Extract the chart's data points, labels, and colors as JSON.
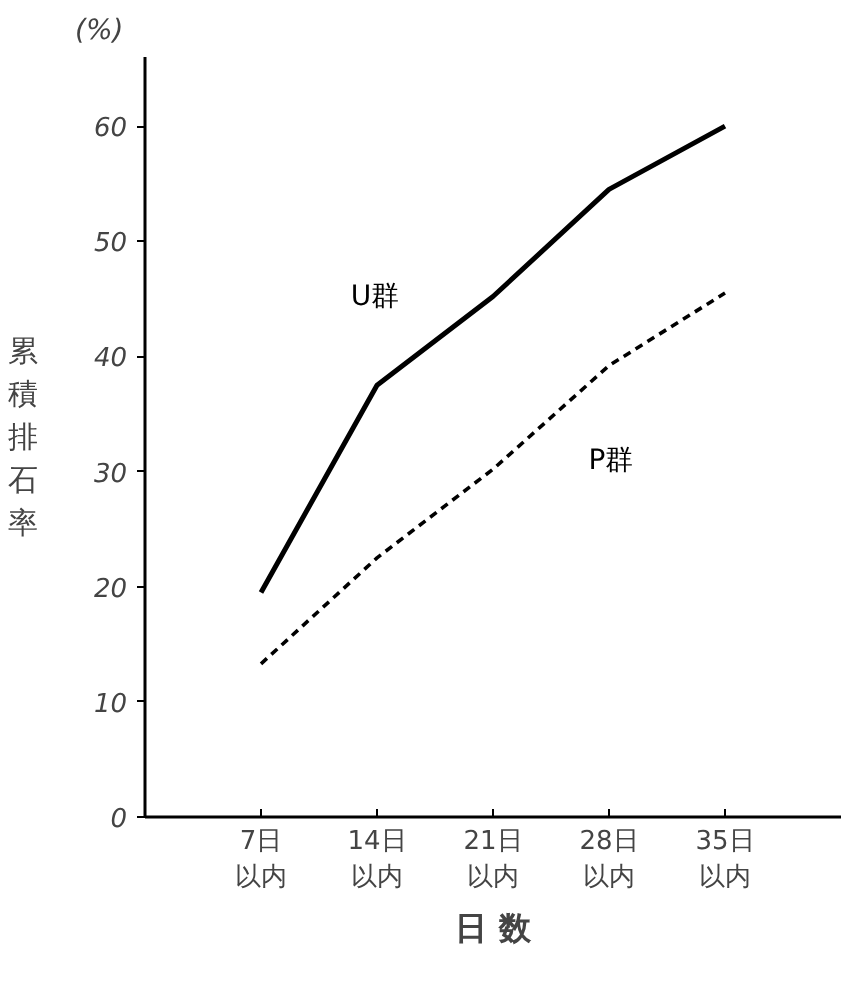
{
  "chart_data": {
    "type": "line",
    "ylabel": "累積排石率",
    "xlabel": "日 数",
    "annotations": [
      "(%)"
    ],
    "categories": [
      "7日以内",
      "14日以内",
      "21日以内",
      "28日以内",
      "35日以内"
    ],
    "ylim": [
      0,
      66
    ],
    "yticks": [
      0,
      10,
      20,
      30,
      40,
      50,
      60
    ],
    "grid": false,
    "marker": "none",
    "series": [
      {
        "name": "U群",
        "color": "#000000",
        "line_style": "solid",
        "values": [
          19.5,
          37.5,
          45.2,
          54.5,
          60
        ]
      },
      {
        "name": "P群",
        "color": "#000000",
        "line_style": "dashed",
        "values": [
          13.3,
          22.5,
          30.2,
          39.2,
          45.5
        ]
      }
    ]
  }
}
